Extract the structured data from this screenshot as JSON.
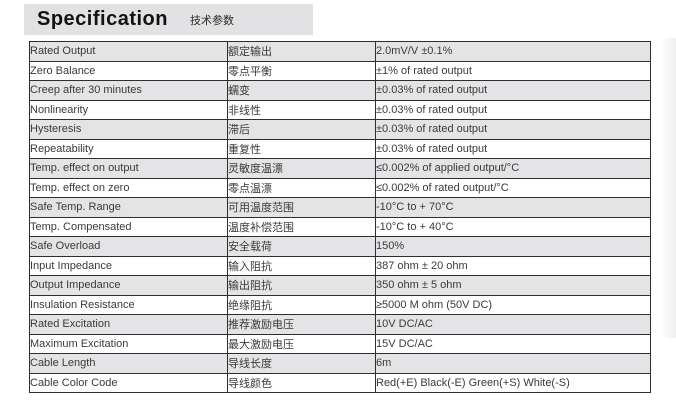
{
  "header": {
    "title_en": "Specification",
    "title_zh": "技术参数"
  },
  "colors": {
    "banner_bg": "#e2e2e4",
    "row_alt_bg": "#e4e4e6",
    "border": "#2e2e2e",
    "text": "#3a3a3a"
  },
  "table": {
    "rows": [
      {
        "en": "Rated Output",
        "zh": "额定输出",
        "value": "2.0mV/V ±0.1%"
      },
      {
        "en": "Zero Balance",
        "zh": "零点平衡",
        "value": "±1% of rated output"
      },
      {
        "en": "Creep after 30 minutes",
        "zh": "蠕变",
        "value": "±0.03% of rated output"
      },
      {
        "en": "Nonlinearity",
        "zh": "非线性",
        "value": "±0.03% of rated output"
      },
      {
        "en": "Hysteresis",
        "zh": "滞后",
        "value": "±0.03% of rated output"
      },
      {
        "en": "Repeatability",
        "zh": "重复性",
        "value": "±0.03% of rated output"
      },
      {
        "en": "Temp. effect on output",
        "zh": "灵敏度温漂",
        "value": "≤0.002% of applied output/°C"
      },
      {
        "en": "Temp. effect on zero",
        "zh": "零点温漂",
        "value": "≤0.002% of rated output/°C"
      },
      {
        "en": "Safe Temp. Range",
        "zh": "可用温度范围",
        "value": "-10°C to + 70°C"
      },
      {
        "en": "Temp. Compensated",
        "zh": "温度补偿范围",
        "value": "-10°C to + 40°C"
      },
      {
        "en": "Safe Overload",
        "zh": "安全载荷",
        "value": "150%"
      },
      {
        "en": "Input Impedance",
        "zh": "输入阻抗",
        "value": "387 ohm ± 20 ohm"
      },
      {
        "en": "Output Impedance",
        "zh": "输出阻抗",
        "value": "350 ohm ± 5 ohm"
      },
      {
        "en": "Insulation Resistance",
        "zh": "绝缘阻抗",
        "value": "≥5000 M ohm (50V DC)"
      },
      {
        "en": "Rated Excitation",
        "zh": "推荐激励电压",
        "value": "10V DC/AC"
      },
      {
        "en": "Maximum Excitation",
        "zh": "最大激励电压",
        "value": "15V DC/AC"
      },
      {
        "en": "Cable Length",
        "zh": "导线长度",
        "value": "6m"
      },
      {
        "en": "Cable Color Code",
        "zh": "导线颜色",
        "value": "Red(+E) Black(-E) Green(+S) White(-S)"
      }
    ]
  }
}
